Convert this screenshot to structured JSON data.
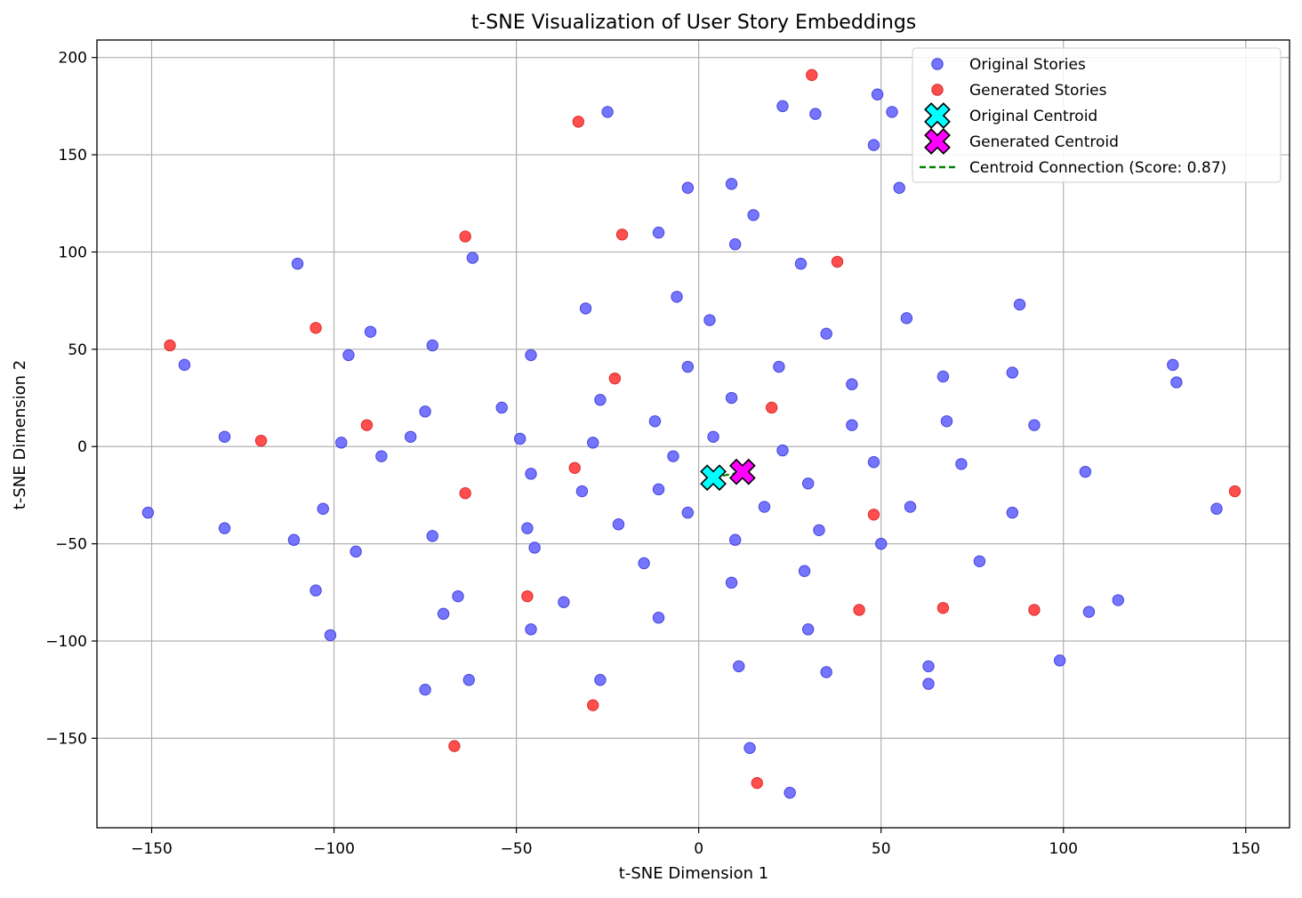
{
  "chart_data": {
    "type": "scatter",
    "title": "t-SNE Visualization of User Story Embeddings",
    "xlabel": "t-SNE Dimension 1",
    "ylabel": "t-SNE Dimension 2",
    "xlim": [
      -165,
      162
    ],
    "ylim": [
      -196,
      209
    ],
    "xticks": [
      -150,
      -100,
      -50,
      0,
      50,
      100,
      150
    ],
    "yticks": [
      -150,
      -100,
      -50,
      0,
      50,
      100,
      150,
      200
    ],
    "xtick_labels": [
      "−150",
      "−100",
      "−50",
      "0",
      "50",
      "100",
      "150"
    ],
    "ytick_labels": [
      "−150",
      "−100",
      "−50",
      "0",
      "50",
      "100",
      "150",
      "200"
    ],
    "grid": true,
    "legend_position": "upper right",
    "legend": [
      {
        "label": "Original Stories",
        "kind": "point",
        "color": "#6666ff"
      },
      {
        "label": "Generated Stories",
        "kind": "point",
        "color": "#ff3b3b"
      },
      {
        "label": "Original Centroid",
        "kind": "xmarker",
        "color": "#00ffff"
      },
      {
        "label": "Generated Centroid",
        "kind": "xmarker",
        "color": "#ff00ff"
      },
      {
        "label": "Centroid Connection (Score: 0.87)",
        "kind": "dashline",
        "color": "#008000"
      }
    ],
    "series": [
      {
        "name": "Original Stories",
        "color": "#6666ff",
        "points": [
          [
            -151,
            -34
          ],
          [
            -141,
            42
          ],
          [
            -130,
            5
          ],
          [
            -130,
            -42
          ],
          [
            -111,
            -48
          ],
          [
            -110,
            94
          ],
          [
            -105,
            -74
          ],
          [
            -103,
            -32
          ],
          [
            -101,
            -97
          ],
          [
            -98,
            2
          ],
          [
            -96,
            47
          ],
          [
            -94,
            -54
          ],
          [
            -90,
            59
          ],
          [
            -87,
            -5
          ],
          [
            -79,
            5
          ],
          [
            -75,
            18
          ],
          [
            -73,
            52
          ],
          [
            -73,
            -46
          ],
          [
            -75,
            -125
          ],
          [
            -70,
            -86
          ],
          [
            -66,
            -77
          ],
          [
            -62,
            97
          ],
          [
            -63,
            -120
          ],
          [
            -54,
            20
          ],
          [
            -49,
            4
          ],
          [
            -47,
            -42
          ],
          [
            -46,
            47
          ],
          [
            -46,
            -14
          ],
          [
            -45,
            -52
          ],
          [
            -46,
            -94
          ],
          [
            -37,
            -80
          ],
          [
            -32,
            -23
          ],
          [
            -31,
            71
          ],
          [
            -29,
            2
          ],
          [
            -27,
            24
          ],
          [
            -27,
            -120
          ],
          [
            -25,
            172
          ],
          [
            -22,
            -40
          ],
          [
            -15,
            -60
          ],
          [
            -12,
            13
          ],
          [
            -11,
            -22
          ],
          [
            -11,
            110
          ],
          [
            -11,
            -88
          ],
          [
            -7,
            -5
          ],
          [
            -6,
            77
          ],
          [
            -3,
            133
          ],
          [
            -3,
            41
          ],
          [
            -3,
            -34
          ],
          [
            3,
            65
          ],
          [
            4,
            5
          ],
          [
            9,
            25
          ],
          [
            9,
            135
          ],
          [
            9,
            -70
          ],
          [
            10,
            104
          ],
          [
            10,
            -48
          ],
          [
            11,
            -113
          ],
          [
            14,
            -155
          ],
          [
            15,
            119
          ],
          [
            18,
            -31
          ],
          [
            22,
            41
          ],
          [
            23,
            -2
          ],
          [
            23,
            175
          ],
          [
            25,
            -178
          ],
          [
            28,
            94
          ],
          [
            29,
            -64
          ],
          [
            30,
            -19
          ],
          [
            30,
            -94
          ],
          [
            32,
            171
          ],
          [
            33,
            -43
          ],
          [
            35,
            58
          ],
          [
            35,
            -116
          ],
          [
            42,
            11
          ],
          [
            42,
            32
          ],
          [
            48,
            155
          ],
          [
            48,
            -8
          ],
          [
            49,
            181
          ],
          [
            50,
            -50
          ],
          [
            53,
            172
          ],
          [
            55,
            133
          ],
          [
            57,
            66
          ],
          [
            58,
            -31
          ],
          [
            63,
            -113
          ],
          [
            63,
            -122
          ],
          [
            67,
            36
          ],
          [
            68,
            13
          ],
          [
            72,
            -9
          ],
          [
            77,
            -59
          ],
          [
            86,
            38
          ],
          [
            86,
            -34
          ],
          [
            88,
            73
          ],
          [
            92,
            11
          ],
          [
            99,
            -110
          ],
          [
            106,
            -13
          ],
          [
            107,
            -85
          ],
          [
            115,
            -79
          ],
          [
            130,
            42
          ],
          [
            131,
            33
          ],
          [
            142,
            -32
          ]
        ]
      },
      {
        "name": "Generated Stories",
        "color": "#ff3b3b",
        "points": [
          [
            -145,
            52
          ],
          [
            -120,
            3
          ],
          [
            -105,
            61
          ],
          [
            -91,
            11
          ],
          [
            -67,
            -154
          ],
          [
            -64,
            108
          ],
          [
            -64,
            -24
          ],
          [
            -47,
            -77
          ],
          [
            -34,
            -11
          ],
          [
            -33,
            167
          ],
          [
            -29,
            -133
          ],
          [
            -23,
            35
          ],
          [
            -21,
            109
          ],
          [
            20,
            20
          ],
          [
            16,
            -173
          ],
          [
            31,
            191
          ],
          [
            38,
            95
          ],
          [
            44,
            -84
          ],
          [
            48,
            -35
          ],
          [
            67,
            -83
          ],
          [
            92,
            -84
          ],
          [
            147,
            -23
          ]
        ]
      }
    ],
    "centroids": [
      {
        "name": "Original Centroid",
        "x": 4,
        "y": -16,
        "color": "#00ffff"
      },
      {
        "name": "Generated Centroid",
        "x": 12,
        "y": -13,
        "color": "#ff00ff"
      }
    ],
    "connection": {
      "name": "Centroid Connection (Score: 0.87)",
      "from": [
        4,
        -16
      ],
      "to": [
        12,
        -13
      ],
      "color": "#008000"
    }
  }
}
